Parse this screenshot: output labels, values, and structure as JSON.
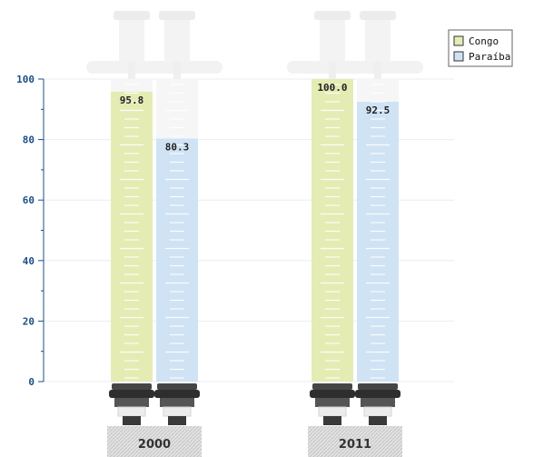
{
  "chart_data": {
    "type": "bar",
    "title": "",
    "xlabel": "",
    "ylabel": "",
    "categories": [
      "2000",
      "2011"
    ],
    "series": [
      {
        "name": "Congo",
        "values": [
          95.8,
          100.0
        ],
        "value_labels": [
          "95.8",
          "100.0"
        ],
        "color": "#e4ecb4"
      },
      {
        "name": "Paraíba",
        "values": [
          80.3,
          92.5
        ],
        "value_labels": [
          "80.3",
          "92.5"
        ],
        "color": "#cfe3f4"
      }
    ],
    "ylim": [
      0,
      100
    ],
    "yticks": [
      0,
      20,
      40,
      60,
      80,
      100
    ],
    "ytick_labels": [
      "0",
      "20",
      "40",
      "60",
      "80",
      "100"
    ],
    "grid": true,
    "legend_position": "top-right",
    "colors": {
      "axis": "#1a4f86",
      "grid": "#e8eef4"
    }
  }
}
